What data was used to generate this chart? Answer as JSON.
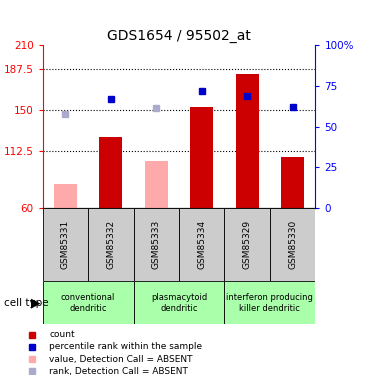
{
  "title": "GDS1654 / 95502_at",
  "samples": [
    "GSM85331",
    "GSM85332",
    "GSM85333",
    "GSM85334",
    "GSM85329",
    "GSM85330"
  ],
  "bar_values": [
    null,
    125,
    null,
    153,
    183,
    107
  ],
  "bar_absent_values": [
    82,
    null,
    103,
    null,
    null,
    null
  ],
  "rank_values": [
    null,
    160,
    null,
    168,
    163,
    153
  ],
  "rank_absent_values": [
    147,
    null,
    152,
    null,
    null,
    null
  ],
  "ylim_left": [
    60,
    210
  ],
  "left_ticks": [
    60,
    112.5,
    150,
    187.5,
    210
  ],
  "right_ticks": [
    0,
    25,
    50,
    75,
    100
  ],
  "right_tick_labels": [
    "0",
    "25",
    "50",
    "75",
    "100%"
  ],
  "grid_lines": [
    112.5,
    150,
    187.5
  ],
  "groups": [
    {
      "label": "conventional\ndendritic",
      "start": 0,
      "end": 2
    },
    {
      "label": "plasmacytoid\ndendritic",
      "start": 2,
      "end": 4
    },
    {
      "label": "interferon producing\nkiller dendritic",
      "start": 4,
      "end": 6
    }
  ],
  "bar_color": "#cc0000",
  "bar_absent_color": "#ffaaaa",
  "rank_color": "#0000cc",
  "rank_absent_color": "#aaaacc",
  "group_bg_color": "#aaffaa",
  "sample_bg_color": "#cccccc",
  "bar_width": 0.5,
  "legend_items": [
    {
      "color": "#cc0000",
      "label": "count"
    },
    {
      "color": "#0000cc",
      "label": "percentile rank within the sample"
    },
    {
      "color": "#ffaaaa",
      "label": "value, Detection Call = ABSENT"
    },
    {
      "color": "#aaaacc",
      "label": "rank, Detection Call = ABSENT"
    }
  ]
}
